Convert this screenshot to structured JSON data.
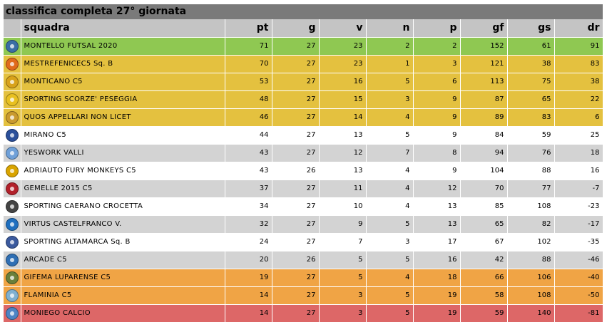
{
  "title": "classifica completa 27° giornata",
  "headers": [
    "squadra",
    "pt",
    "g",
    "v",
    "n",
    "p",
    "gf",
    "gs",
    "dr"
  ],
  "colors": {
    "title_bar": "#7a7a7a",
    "header": "#c4c4c4",
    "leader": "#8fc852",
    "playoff": "#e4c13f",
    "neutral_white": "#ffffff",
    "neutral_gray": "#d3d3d3",
    "playout": "#f0a445",
    "relegation": "#dd6767"
  },
  "rows": [
    {
      "team": "MONTELLO FUTSAL 2020",
      "pt": "71",
      "g": "27",
      "v": "23",
      "n": "2",
      "p": "2",
      "gf": "152",
      "gs": "61",
      "dr": "91",
      "zone": "leader",
      "logo": "#3a6ea5",
      "logo_name": "montello-futsal-logo-icon"
    },
    {
      "team": "MESTREFENICEC5 Sq. B",
      "pt": "70",
      "g": "27",
      "v": "23",
      "n": "1",
      "p": "3",
      "gf": "121",
      "gs": "38",
      "dr": "83",
      "zone": "playoff",
      "logo": "#e06a1b",
      "logo_name": "mestrefenice-logo-icon"
    },
    {
      "team": "MONTICANO C5",
      "pt": "53",
      "g": "27",
      "v": "16",
      "n": "5",
      "p": "6",
      "gf": "113",
      "gs": "75",
      "dr": "38",
      "zone": "playoff",
      "logo": "#d8a21a",
      "logo_name": "monticano-logo-icon"
    },
    {
      "team": "SPORTING SCORZE' PESEGGIA",
      "pt": "48",
      "g": "27",
      "v": "15",
      "n": "3",
      "p": "9",
      "gf": "87",
      "gs": "65",
      "dr": "22",
      "zone": "playoff",
      "logo": "#e8c020",
      "logo_name": "sporting-scorze-logo-icon"
    },
    {
      "team": "QUOS APPELLARI NON LICET",
      "pt": "46",
      "g": "27",
      "v": "14",
      "n": "4",
      "p": "9",
      "gf": "89",
      "gs": "83",
      "dr": "6",
      "zone": "playoff",
      "logo": "#c99a2e",
      "logo_name": "quos-appellari-logo-icon"
    },
    {
      "team": "MIRANO C5",
      "pt": "44",
      "g": "27",
      "v": "13",
      "n": "5",
      "p": "9",
      "gf": "84",
      "gs": "59",
      "dr": "25",
      "zone": "neutral_white",
      "logo": "#2a4f9a",
      "logo_name": "mirano-logo-icon"
    },
    {
      "team": "YESWORK VALLI",
      "pt": "43",
      "g": "27",
      "v": "12",
      "n": "7",
      "p": "8",
      "gf": "94",
      "gs": "76",
      "dr": "18",
      "zone": "neutral_gray",
      "logo": "#6fa0d8",
      "logo_name": "yeswork-valli-logo-icon"
    },
    {
      "team": "ADRIAUTO FURY MONKEYS C5",
      "pt": "43",
      "g": "26",
      "v": "13",
      "n": "4",
      "p": "9",
      "gf": "104",
      "gs": "88",
      "dr": "16",
      "zone": "neutral_white",
      "logo": "#d9a400",
      "logo_name": "fury-monkeys-logo-icon"
    },
    {
      "team": "GEMELLE 2015 C5",
      "pt": "37",
      "g": "27",
      "v": "11",
      "n": "4",
      "p": "12",
      "gf": "70",
      "gs": "77",
      "dr": "-7",
      "zone": "neutral_gray",
      "logo": "#b2202a",
      "logo_name": "gemelle-logo-icon"
    },
    {
      "team": "SPORTING CAERANO CROCETTA",
      "pt": "34",
      "g": "27",
      "v": "10",
      "n": "4",
      "p": "13",
      "gf": "85",
      "gs": "108",
      "dr": "-23",
      "zone": "neutral_white",
      "logo": "#444444",
      "logo_name": "sporting-caerano-logo-icon"
    },
    {
      "team": "VIRTUS CASTELFRANCO V.",
      "pt": "32",
      "g": "27",
      "v": "9",
      "n": "5",
      "p": "13",
      "gf": "65",
      "gs": "82",
      "dr": "-17",
      "zone": "neutral_gray",
      "logo": "#1f6fbf",
      "logo_name": "virtus-castelfranco-logo-icon"
    },
    {
      "team": "SPORTING ALTAMARCA Sq. B",
      "pt": "24",
      "g": "27",
      "v": "7",
      "n": "3",
      "p": "17",
      "gf": "67",
      "gs": "102",
      "dr": "-35",
      "zone": "neutral_white",
      "logo": "#3b5a9e",
      "logo_name": "sporting-altamarca-logo-icon"
    },
    {
      "team": "ARCADE C5",
      "pt": "20",
      "g": "26",
      "v": "5",
      "n": "5",
      "p": "16",
      "gf": "42",
      "gs": "88",
      "dr": "-46",
      "zone": "neutral_gray",
      "logo": "#2f6fb4",
      "logo_name": "arcade-logo-icon"
    },
    {
      "team": "GIFEMA LUPARENSE C5",
      "pt": "19",
      "g": "27",
      "v": "5",
      "n": "4",
      "p": "18",
      "gf": "66",
      "gs": "106",
      "dr": "-40",
      "zone": "playout",
      "logo": "#6a7f3a",
      "logo_name": "gifema-luparense-logo-icon"
    },
    {
      "team": "FLAMINIA C5",
      "pt": "14",
      "g": "27",
      "v": "3",
      "n": "5",
      "p": "19",
      "gf": "58",
      "gs": "108",
      "dr": "-50",
      "zone": "playout",
      "logo": "#7fb0d0",
      "logo_name": "flaminia-logo-icon"
    },
    {
      "team": "MONIEGO CALCIO",
      "pt": "14",
      "g": "27",
      "v": "3",
      "n": "5",
      "p": "19",
      "gf": "59",
      "gs": "140",
      "dr": "-81",
      "zone": "relegation",
      "logo": "#4d84c4",
      "logo_name": "moniego-calcio-logo-icon"
    }
  ]
}
